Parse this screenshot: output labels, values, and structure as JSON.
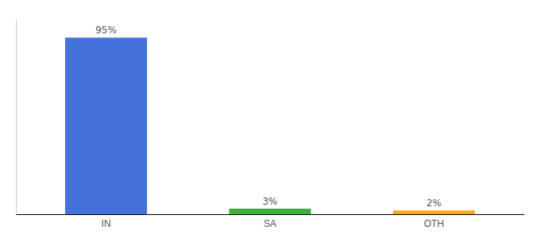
{
  "chart_data": {
    "type": "bar",
    "categories": [
      "IN",
      "SA",
      "OTH"
    ],
    "values": [
      95,
      3,
      2
    ],
    "value_labels": [
      "95%",
      "3%",
      "2%"
    ],
    "colors": [
      "#4472db",
      "#3daf3d",
      "#f5a623"
    ],
    "ylim": [
      0,
      105
    ],
    "data_labels": true,
    "tick_labels": "x"
  }
}
